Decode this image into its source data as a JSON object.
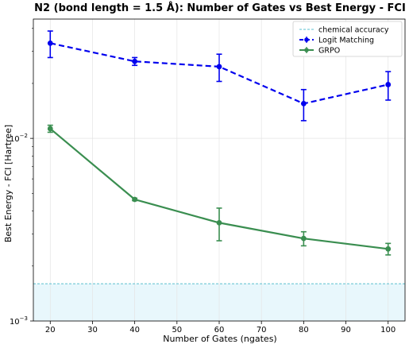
{
  "chart_data": {
    "type": "line",
    "title": "N2 (bond length = 1.5 Å): Number of Gates vs Best Energy - FCI",
    "xlabel": "Number of Gates (ngates)",
    "ylabel": "Best Energy - FCI [Hartree]",
    "xlim": [
      16,
      104
    ],
    "ylim": [
      0.001,
      0.045
    ],
    "yscale": "log",
    "x_ticks": [
      20,
      30,
      40,
      50,
      60,
      70,
      80,
      90,
      100
    ],
    "y_tick_labels": [
      {
        "value": 0.01,
        "base": "10",
        "exp": "−2"
      },
      {
        "value": 0.001,
        "base": "10",
        "exp": "−3"
      }
    ],
    "grid": true,
    "legend_position": "top-right",
    "chemical_accuracy": {
      "label": "chemical accuracy",
      "value": 0.0016,
      "color": "#5bc0d0"
    },
    "series": [
      {
        "name": "Logit Matching",
        "color": "#0000ee",
        "style": "dashed",
        "x": [
          20,
          40,
          60,
          80,
          100
        ],
        "y": [
          0.0332,
          0.0264,
          0.0247,
          0.0155,
          0.0197
        ],
        "err": [
          0.0055,
          0.0013,
          0.0042,
          0.003,
          0.0035
        ]
      },
      {
        "name": "GRPO",
        "color": "#3a8e50",
        "style": "solid",
        "x": [
          20,
          40,
          60,
          80,
          100
        ],
        "y": [
          0.0113,
          0.00463,
          0.00345,
          0.00283,
          0.00248
        ],
        "err": [
          0.0005,
          7e-05,
          0.0007,
          0.00025,
          0.00018
        ]
      }
    ]
  }
}
